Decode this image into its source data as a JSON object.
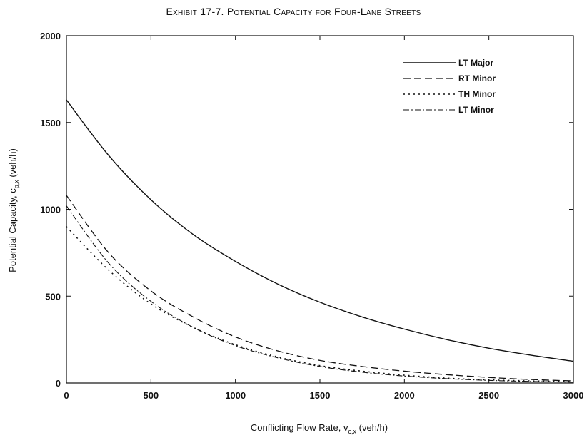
{
  "chart_data": {
    "type": "line",
    "title": "Exhibit 17-7. Potential Capacity for Four-Lane Streets",
    "xlabel": "Conflicting Flow Rate, v",
    "xlabel_sub": "c,x",
    "xlabel_unit": " (veh/h)",
    "ylabel": "Potential Capacity, c",
    "ylabel_sub": "p,x",
    "ylabel_unit": " (veh/h)",
    "xlim": [
      0,
      3000
    ],
    "ylim": [
      0,
      2000
    ],
    "xticks": [
      "0",
      "500",
      "1000",
      "1500",
      "2000",
      "2500",
      "3000"
    ],
    "yticks": [
      "0",
      "500",
      "1000",
      "1500",
      "2000"
    ],
    "grid": false,
    "legend_position": "top-right",
    "x": [
      0,
      250,
      500,
      750,
      1000,
      1250,
      1500,
      1750,
      2000,
      2250,
      2500,
      2750,
      3000
    ],
    "series": [
      {
        "name": "LT Major",
        "style": "solid",
        "values": [
          1630,
          1310,
          1055,
          855,
          700,
          570,
          465,
          380,
          310,
          250,
          200,
          160,
          125
        ]
      },
      {
        "name": "RT Minor",
        "style": "dashed",
        "values": [
          1080,
          750,
          530,
          380,
          265,
          185,
          130,
          95,
          68,
          48,
          32,
          20,
          12
        ]
      },
      {
        "name": "TH Minor",
        "style": "dotted",
        "values": [
          900,
          650,
          455,
          320,
          220,
          150,
          100,
          68,
          45,
          28,
          18,
          12,
          8
        ]
      },
      {
        "name": "LT Minor",
        "style": "dash-dot",
        "values": [
          1020,
          690,
          470,
          320,
          215,
          145,
          95,
          62,
          40,
          25,
          15,
          9,
          5
        ]
      }
    ]
  }
}
